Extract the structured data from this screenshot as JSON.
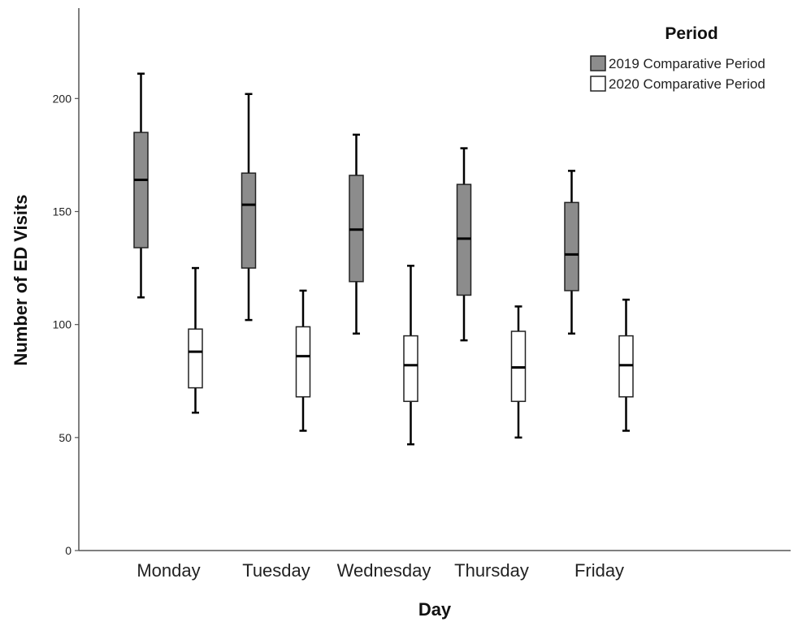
{
  "chart_data": {
    "type": "boxplot",
    "xlabel": "Day",
    "ylabel": "Number of ED Visits",
    "ylim": [
      0,
      240
    ],
    "yticks": [
      0,
      50,
      100,
      150,
      200
    ],
    "categories": [
      "Monday",
      "Tuesday",
      "Wednesday",
      "Thursday",
      "Friday"
    ],
    "legend": {
      "title": "Period",
      "position": "top-right"
    },
    "series": [
      {
        "name": "2019 Comparative Period",
        "color": "#8c8c8c",
        "boxes": [
          {
            "min": 112,
            "q1": 134,
            "median": 164,
            "q3": 185,
            "max": 211
          },
          {
            "min": 102,
            "q1": 125,
            "median": 153,
            "q3": 167,
            "max": 202
          },
          {
            "min": 96,
            "q1": 119,
            "median": 142,
            "q3": 166,
            "max": 184
          },
          {
            "min": 93,
            "q1": 113,
            "median": 138,
            "q3": 162,
            "max": 178
          },
          {
            "min": 96,
            "q1": 115,
            "median": 131,
            "q3": 154,
            "max": 168
          }
        ]
      },
      {
        "name": "2020 Comparative Period",
        "color": "#ffffff",
        "boxes": [
          {
            "min": 61,
            "q1": 72,
            "median": 88,
            "q3": 98,
            "max": 125
          },
          {
            "min": 53,
            "q1": 68,
            "median": 86,
            "q3": 99,
            "max": 115
          },
          {
            "min": 47,
            "q1": 66,
            "median": 82,
            "q3": 95,
            "max": 126
          },
          {
            "min": 50,
            "q1": 66,
            "median": 81,
            "q3": 97,
            "max": 108
          },
          {
            "min": 53,
            "q1": 68,
            "median": 82,
            "q3": 95,
            "max": 111
          }
        ]
      }
    ]
  }
}
